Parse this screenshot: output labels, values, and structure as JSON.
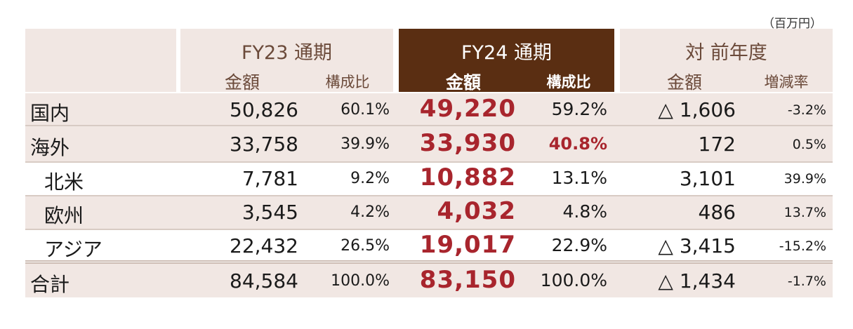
{
  "unit": "（百万円）",
  "header": {
    "fy23": "FY23 通期",
    "fy24": "FY24 通期",
    "yoy": "対 前年度",
    "amount": "金額",
    "ratio": "構成比",
    "change": "増減率"
  },
  "rows": [
    {
      "label": "国内",
      "fy23_amount": "50,826",
      "fy23_ratio": "60.1%",
      "fy24_amount": "49,220",
      "fy24_ratio": "59.2%",
      "yoy_amount": "△ 1,606",
      "yoy_rate": "-3.2%"
    },
    {
      "label": "海外",
      "fy23_amount": "33,758",
      "fy23_ratio": "39.9%",
      "fy24_amount": "33,930",
      "fy24_ratio": "40.8%",
      "yoy_amount": "172",
      "yoy_rate": "0.5%"
    },
    {
      "label": "北米",
      "fy23_amount": "7,781",
      "fy23_ratio": "9.2%",
      "fy24_amount": "10,882",
      "fy24_ratio": "13.1%",
      "yoy_amount": "3,101",
      "yoy_rate": "39.9%"
    },
    {
      "label": "欧州",
      "fy23_amount": "3,545",
      "fy23_ratio": "4.2%",
      "fy24_amount": "4,032",
      "fy24_ratio": "4.8%",
      "yoy_amount": "486",
      "yoy_rate": "13.7%"
    },
    {
      "label": "アジア",
      "fy23_amount": "22,432",
      "fy23_ratio": "26.5%",
      "fy24_amount": "19,017",
      "fy24_ratio": "22.9%",
      "yoy_amount": "△ 3,415",
      "yoy_rate": "-15.2%"
    },
    {
      "label": "合計",
      "fy23_amount": "84,584",
      "fy23_ratio": "100.0%",
      "fy24_amount": "83,150",
      "fy24_ratio": "100.0%",
      "yoy_amount": "△ 1,434",
      "yoy_rate": "-1.7%"
    }
  ],
  "colors": {
    "header_bg": "#f1e7e3",
    "fy24_header_bg": "#5a2e12",
    "highlight": "#a8252d"
  }
}
